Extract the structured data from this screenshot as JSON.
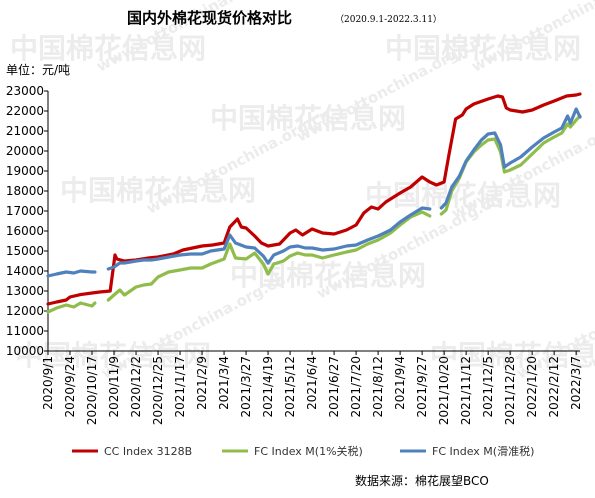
{
  "chart_data": {
    "type": "line",
    "title": "国内外棉花现货价格对比",
    "subtitle": "（2020.9.1-2022.3.11）",
    "ylabel": "单位：元/吨",
    "ylim": [
      10000,
      23000
    ],
    "yticks": [
      10000,
      11000,
      12000,
      13000,
      14000,
      15000,
      16000,
      17000,
      18000,
      19000,
      20000,
      21000,
      22000,
      23000
    ],
    "grid": false,
    "legend_position": "bottom",
    "x_start": "2020/9/1",
    "x_end": "2022/3/11",
    "xticks": [
      "2020/9/1",
      "2020/9/24",
      "2020/10/17",
      "2020/11/9",
      "2020/12/2",
      "2020/12/25",
      "2021/1/17",
      "2021/2/9",
      "2021/3/4",
      "2021/3/27",
      "2021/4/19",
      "2021/5/12",
      "2021/6/4",
      "2021/6/27",
      "2021/7/20",
      "2021/8/12",
      "2021/9/4",
      "2021/9/27",
      "2021/10/20",
      "2021/11/12",
      "2021/12/5",
      "2021/12/28",
      "2022/1/20",
      "2022/2/12",
      "2022/3/7"
    ],
    "series": [
      {
        "name": "CC Index 3128B",
        "color": "#c00000",
        "points": [
          [
            "2020/9/1",
            12350
          ],
          [
            "2020/9/10",
            12450
          ],
          [
            "2020/9/20",
            12550
          ],
          [
            "2020/9/24",
            12700
          ],
          [
            "2020/10/5",
            12820
          ],
          [
            "2020/10/17",
            12900
          ],
          [
            "2020/10/25",
            12950
          ],
          [
            "2020/11/5",
            13000
          ],
          [
            "2020/11/10",
            14800
          ],
          [
            "2020/11/12",
            14600
          ],
          [
            "2020/11/20",
            14500
          ],
          [
            "2020/12/2",
            14550
          ],
          [
            "2020/12/15",
            14650
          ],
          [
            "2020/12/25",
            14700
          ],
          [
            "2021/1/10",
            14850
          ],
          [
            "2021/1/20",
            15050
          ],
          [
            "2021/2/9",
            15250
          ],
          [
            "2021/2/20",
            15300
          ],
          [
            "2021/3/4",
            15400
          ],
          [
            "2021/3/10",
            16200
          ],
          [
            "2021/3/18",
            16600
          ],
          [
            "2021/3/22",
            16200
          ],
          [
            "2021/3/27",
            16150
          ],
          [
            "2021/4/5",
            15750
          ],
          [
            "2021/4/12",
            15400
          ],
          [
            "2021/4/19",
            15250
          ],
          [
            "2021/5/1",
            15350
          ],
          [
            "2021/5/12",
            15900
          ],
          [
            "2021/5/18",
            16050
          ],
          [
            "2021/5/25",
            15800
          ],
          [
            "2021/6/4",
            16100
          ],
          [
            "2021/6/15",
            15900
          ],
          [
            "2021/6/27",
            15850
          ],
          [
            "2021/7/10",
            16050
          ],
          [
            "2021/7/20",
            16300
          ],
          [
            "2021/7/28",
            16900
          ],
          [
            "2021/8/5",
            17200
          ],
          [
            "2021/8/12",
            17100
          ],
          [
            "2021/8/20",
            17450
          ],
          [
            "2021/9/4",
            17900
          ],
          [
            "2021/9/15",
            18200
          ],
          [
            "2021/9/27",
            18700
          ],
          [
            "2021/10/5",
            18450
          ],
          [
            "2021/10/12",
            18300
          ],
          [
            "2021/10/20",
            18450
          ],
          [
            "2021/10/25",
            19800
          ],
          [
            "2021/11/1",
            21600
          ],
          [
            "2021/11/8",
            21800
          ],
          [
            "2021/11/12",
            22100
          ],
          [
            "2021/11/20",
            22350
          ],
          [
            "2021/12/5",
            22600
          ],
          [
            "2021/12/15",
            22750
          ],
          [
            "2021/12/20",
            22700
          ],
          [
            "2021/12/24",
            22150
          ],
          [
            "2021/12/28",
            22050
          ],
          [
            "2022/1/10",
            21950
          ],
          [
            "2022/1/20",
            22050
          ],
          [
            "2022/2/1",
            22300
          ],
          [
            "2022/2/12",
            22500
          ],
          [
            "2022/2/25",
            22750
          ],
          [
            "2022/3/7",
            22800
          ],
          [
            "2022/3/11",
            22850
          ]
        ]
      },
      {
        "name": "FC Index M(1%关税)",
        "color": "#8fbc4a",
        "points": [
          [
            "2020/9/1",
            11950
          ],
          [
            "2020/9/10",
            12150
          ],
          [
            "2020/9/20",
            12300
          ],
          [
            "2020/9/28",
            12200
          ],
          [
            "2020/10/5",
            12400
          ],
          [
            "2020/10/17",
            12250
          ],
          [
            "2020/10/20",
            12400
          ],
          [
            "2020/10/28",
            null
          ],
          [
            "2020/11/3",
            12550
          ],
          [
            "2020/11/9",
            12800
          ],
          [
            "2020/11/15",
            13050
          ],
          [
            "2020/11/20",
            12800
          ],
          [
            "2020/12/2",
            13200
          ],
          [
            "2020/12/10",
            13300
          ],
          [
            "2020/12/18",
            13350
          ],
          [
            "2020/12/25",
            13700
          ],
          [
            "2021/1/5",
            13950
          ],
          [
            "2021/1/17",
            14050
          ],
          [
            "2021/1/28",
            14150
          ],
          [
            "2021/2/9",
            14150
          ],
          [
            "2021/2/18",
            14350
          ],
          [
            "2021/3/4",
            14600
          ],
          [
            "2021/3/10",
            15350
          ],
          [
            "2021/3/16",
            14650
          ],
          [
            "2021/3/27",
            14600
          ],
          [
            "2021/4/5",
            14900
          ],
          [
            "2021/4/14",
            14350
          ],
          [
            "2021/4/19",
            13850
          ],
          [
            "2021/4/25",
            14350
          ],
          [
            "2021/5/5",
            14500
          ],
          [
            "2021/5/12",
            14750
          ],
          [
            "2021/5/20",
            14900
          ],
          [
            "2021/5/28",
            14800
          ],
          [
            "2021/6/4",
            14800
          ],
          [
            "2021/6/15",
            14650
          ],
          [
            "2021/6/27",
            14800
          ],
          [
            "2021/7/10",
            14950
          ],
          [
            "2021/7/20",
            15050
          ],
          [
            "2021/8/1",
            15350
          ],
          [
            "2021/8/12",
            15550
          ],
          [
            "2021/8/25",
            15900
          ],
          [
            "2021/9/4",
            16300
          ],
          [
            "2021/9/15",
            16700
          ],
          [
            "2021/9/27",
            16950
          ],
          [
            "2021/10/5",
            16750
          ],
          [
            "2021/10/12",
            null
          ],
          [
            "2021/10/17",
            16850
          ],
          [
            "2021/10/22",
            17050
          ],
          [
            "2021/10/28",
            18000
          ],
          [
            "2021/11/5",
            18650
          ],
          [
            "2021/11/12",
            19450
          ],
          [
            "2021/11/20",
            19950
          ],
          [
            "2021/11/28",
            20300
          ],
          [
            "2021/12/5",
            20550
          ],
          [
            "2021/12/12",
            20600
          ],
          [
            "2021/12/18",
            19950
          ],
          [
            "2021/12/22",
            18950
          ],
          [
            "2021/12/28",
            19050
          ],
          [
            "2022/1/8",
            19300
          ],
          [
            "2022/1/20",
            19850
          ],
          [
            "2022/2/1",
            20400
          ],
          [
            "2022/2/12",
            20700
          ],
          [
            "2022/2/20",
            20900
          ],
          [
            "2022/2/26",
            21350
          ],
          [
            "2022/3/1",
            21200
          ],
          [
            "2022/3/7",
            21550
          ],
          [
            "2022/3/11",
            21750
          ]
        ]
      },
      {
        "name": "FC Index M(滑准税)",
        "color": "#4f81bd",
        "points": [
          [
            "2020/9/1",
            13750
          ],
          [
            "2020/9/10",
            13850
          ],
          [
            "2020/9/20",
            13950
          ],
          [
            "2020/9/28",
            13900
          ],
          [
            "2020/10/5",
            14000
          ],
          [
            "2020/10/17",
            13950
          ],
          [
            "2020/10/20",
            13950
          ],
          [
            "2020/10/28",
            null
          ],
          [
            "2020/11/3",
            14100
          ],
          [
            "2020/11/9",
            14200
          ],
          [
            "2020/11/15",
            14400
          ],
          [
            "2020/11/20",
            14400
          ],
          [
            "2020/12/2",
            14500
          ],
          [
            "2020/12/10",
            14550
          ],
          [
            "2020/12/18",
            14550
          ],
          [
            "2020/12/25",
            14600
          ],
          [
            "2021/1/5",
            14700
          ],
          [
            "2021/1/17",
            14800
          ],
          [
            "2021/1/28",
            14850
          ],
          [
            "2021/2/9",
            14850
          ],
          [
            "2021/2/18",
            15000
          ],
          [
            "2021/3/4",
            15100
          ],
          [
            "2021/3/10",
            15800
          ],
          [
            "2021/3/16",
            15400
          ],
          [
            "2021/3/27",
            15200
          ],
          [
            "2021/4/5",
            15150
          ],
          [
            "2021/4/14",
            14750
          ],
          [
            "2021/4/19",
            14400
          ],
          [
            "2021/4/25",
            14800
          ],
          [
            "2021/5/5",
            15000
          ],
          [
            "2021/5/12",
            15200
          ],
          [
            "2021/5/20",
            15250
          ],
          [
            "2021/5/28",
            15150
          ],
          [
            "2021/6/4",
            15150
          ],
          [
            "2021/6/15",
            15050
          ],
          [
            "2021/6/27",
            15100
          ],
          [
            "2021/7/10",
            15250
          ],
          [
            "2021/7/20",
            15300
          ],
          [
            "2021/8/1",
            15550
          ],
          [
            "2021/8/12",
            15750
          ],
          [
            "2021/8/25",
            16050
          ],
          [
            "2021/9/4",
            16450
          ],
          [
            "2021/9/15",
            16800
          ],
          [
            "2021/9/27",
            17150
          ],
          [
            "2021/10/5",
            17100
          ],
          [
            "2021/10/12",
            null
          ],
          [
            "2021/10/17",
            17150
          ],
          [
            "2021/10/22",
            17400
          ],
          [
            "2021/10/28",
            18200
          ],
          [
            "2021/11/5",
            18750
          ],
          [
            "2021/11/12",
            19500
          ],
          [
            "2021/11/20",
            20050
          ],
          [
            "2021/11/28",
            20550
          ],
          [
            "2021/12/5",
            20850
          ],
          [
            "2021/12/12",
            20900
          ],
          [
            "2021/12/18",
            20300
          ],
          [
            "2021/12/22",
            19200
          ],
          [
            "2021/12/28",
            19400
          ],
          [
            "2022/1/8",
            19700
          ],
          [
            "2022/1/20",
            20200
          ],
          [
            "2022/2/1",
            20650
          ],
          [
            "2022/2/12",
            20950
          ],
          [
            "2022/2/20",
            21150
          ],
          [
            "2022/2/26",
            21750
          ],
          [
            "2022/3/1",
            21400
          ],
          [
            "2022/3/7",
            22100
          ],
          [
            "2022/3/11",
            21700
          ]
        ]
      }
    ],
    "source": "数据来源：棉花展望BCO"
  },
  "watermark": {
    "brand": "中国棉花信息网",
    "url": "www.cottonchina.org.cn"
  }
}
